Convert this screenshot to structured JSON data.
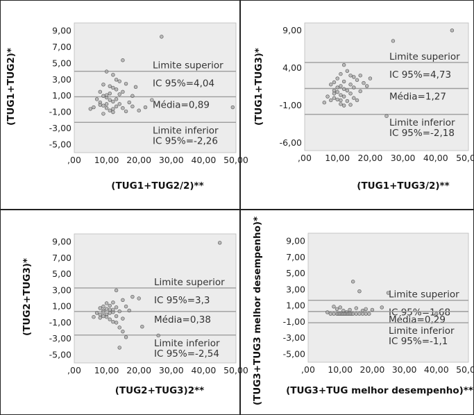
{
  "chart_data": [
    {
      "type": "scatter",
      "xlabel": "(TUG1+TUG2/2)**",
      "ylabel": "(TUG1+TUG2)*",
      "xlim": [
        0,
        50
      ],
      "ylim": [
        -6,
        10
      ],
      "x_ticks": [
        ",00",
        "10,00",
        "20,00",
        "30,00",
        "40,00",
        "50,00"
      ],
      "y_ticks": [
        "9,00",
        "7,00",
        "5,00",
        "3,00",
        "1,00",
        "-1,00",
        "-3,00",
        "-5,00"
      ],
      "y_tick_values": [
        9,
        7,
        5,
        3,
        1,
        -1,
        -3,
        -5
      ],
      "lines": [
        {
          "y": 4.04,
          "label_lines": [
            "Limite superior",
            "IC 95%=4,04"
          ]
        },
        {
          "y": 0.89,
          "label_lines": [
            "Média=0,89"
          ]
        },
        {
          "y": -2.26,
          "label_lines": [
            "Limite inferior",
            "IC 95%=-2,26"
          ]
        }
      ],
      "points": [
        [
          27,
          8.3
        ],
        [
          15,
          5.4
        ],
        [
          10,
          4.0
        ],
        [
          12,
          3.6
        ],
        [
          13,
          3.0
        ],
        [
          14,
          2.8
        ],
        [
          9,
          2.4
        ],
        [
          11,
          2.2
        ],
        [
          12,
          2.0
        ],
        [
          13,
          1.8
        ],
        [
          15,
          1.5
        ],
        [
          16,
          2.5
        ],
        [
          19,
          2.1
        ],
        [
          18,
          1.0
        ],
        [
          8,
          1.5
        ],
        [
          9,
          1.0
        ],
        [
          10,
          0.8
        ],
        [
          11,
          0.5
        ],
        [
          12,
          0.3
        ],
        [
          8,
          0.2
        ],
        [
          9,
          -0.2
        ],
        [
          10,
          -0.5
        ],
        [
          11,
          -0.8
        ],
        [
          12,
          -1.0
        ],
        [
          13,
          -0.3
        ],
        [
          14,
          0.0
        ],
        [
          15,
          -0.5
        ],
        [
          16,
          -0.9
        ],
        [
          18,
          -0.3
        ],
        [
          20,
          -0.8
        ],
        [
          22,
          -0.4
        ],
        [
          24,
          0.5
        ],
        [
          7,
          0.6
        ],
        [
          6,
          -0.4
        ],
        [
          5,
          -0.6
        ],
        [
          9,
          -1.2
        ],
        [
          10,
          0.0
        ],
        [
          11,
          1.3
        ],
        [
          13,
          0.6
        ],
        [
          14,
          1.2
        ],
        [
          17,
          0.2
        ],
        [
          49,
          -0.4
        ],
        [
          10,
          1.1
        ],
        [
          12,
          -0.6
        ],
        [
          8,
          -0.1
        ]
      ]
    },
    {
      "type": "scatter",
      "xlabel": "(TUG1+TUG3/2)**",
      "ylabel": "(TUG1+TUG3)*",
      "xlim": [
        0,
        50
      ],
      "ylim": [
        -7,
        10
      ],
      "x_ticks": [
        ",00",
        "10,00",
        "20,00",
        "30,00",
        "40,00",
        "50,00"
      ],
      "y_ticks": [
        "9,00",
        "4,00",
        "-1,00",
        "-6,00"
      ],
      "y_tick_values": [
        9,
        4,
        -1,
        -6
      ],
      "lines": [
        {
          "y": 4.73,
          "label_lines": [
            "Limite superior",
            "IC 95%=4,73"
          ]
        },
        {
          "y": 1.27,
          "label_lines": [
            "Média=1,27"
          ]
        },
        {
          "y": -2.18,
          "label_lines": [
            "Limite inferior",
            "IC 95%=-2,18"
          ]
        }
      ],
      "points": [
        [
          45,
          9.0
        ],
        [
          27,
          7.6
        ],
        [
          12,
          4.4
        ],
        [
          13,
          3.6
        ],
        [
          11,
          3.2
        ],
        [
          14,
          3.0
        ],
        [
          15,
          2.8
        ],
        [
          16,
          2.4
        ],
        [
          18,
          2.0
        ],
        [
          17,
          3.0
        ],
        [
          10,
          2.6
        ],
        [
          9,
          2.1
        ],
        [
          8,
          1.8
        ],
        [
          11,
          1.6
        ],
        [
          12,
          1.2
        ],
        [
          13,
          1.0
        ],
        [
          10,
          0.8
        ],
        [
          9,
          0.6
        ],
        [
          11,
          0.4
        ],
        [
          12,
          0.2
        ],
        [
          14,
          0.6
        ],
        [
          15,
          0.0
        ],
        [
          16,
          -0.3
        ],
        [
          13,
          -0.4
        ],
        [
          10,
          -0.2
        ],
        [
          9,
          0.0
        ],
        [
          8,
          -0.3
        ],
        [
          7,
          0.2
        ],
        [
          6,
          -0.6
        ],
        [
          11,
          -0.8
        ],
        [
          12,
          -1.0
        ],
        [
          14,
          -0.9
        ],
        [
          15,
          1.4
        ],
        [
          17,
          0.9
        ],
        [
          19,
          1.6
        ],
        [
          25,
          -2.4
        ],
        [
          10,
          1.4
        ],
        [
          12,
          2.2
        ],
        [
          14,
          1.8
        ],
        [
          9,
          1.0
        ],
        [
          20,
          2.6
        ],
        [
          11,
          -0.3
        ]
      ]
    },
    {
      "type": "scatter",
      "xlabel": "(TUG2+TUG3)2**",
      "ylabel": "(TUG2+TUG3)*",
      "xlim": [
        0,
        50
      ],
      "ylim": [
        -6,
        10
      ],
      "x_ticks": [
        ",00",
        "10,00",
        "20,00",
        "30,00",
        "40,00",
        "50,00"
      ],
      "y_ticks": [
        "9,00",
        "7,00",
        "5,00",
        "3,00",
        "1,00",
        "-1,00",
        "-3,00",
        "-5,00"
      ],
      "y_tick_values": [
        9,
        7,
        5,
        3,
        1,
        -1,
        -3,
        -5
      ],
      "lines": [
        {
          "y": 3.3,
          "label_lines": [
            "Limite superior",
            "IC 95%=3,3"
          ]
        },
        {
          "y": 0.38,
          "label_lines": [
            "Média=0,38"
          ]
        },
        {
          "y": -2.54,
          "label_lines": [
            "Limite inferior",
            "IC 95%=-2,54"
          ]
        }
      ],
      "points": [
        [
          45,
          8.9
        ],
        [
          13,
          3.0
        ],
        [
          18,
          2.2
        ],
        [
          20,
          2.0
        ],
        [
          15,
          1.8
        ],
        [
          16,
          1.0
        ],
        [
          17,
          0.5
        ],
        [
          10,
          1.4
        ],
        [
          9,
          1.0
        ],
        [
          8,
          0.8
        ],
        [
          11,
          0.6
        ],
        [
          12,
          0.3
        ],
        [
          10,
          0.0
        ],
        [
          9,
          -0.2
        ],
        [
          8,
          -0.4
        ],
        [
          7,
          0.2
        ],
        [
          6,
          -0.3
        ],
        [
          11,
          -0.6
        ],
        [
          12,
          -0.9
        ],
        [
          13,
          -1.0
        ],
        [
          14,
          -1.6
        ],
        [
          15,
          -2.1
        ],
        [
          16,
          -2.8
        ],
        [
          14,
          -4.1
        ],
        [
          21,
          -1.5
        ],
        [
          26,
          -2.6
        ],
        [
          9,
          0.5
        ],
        [
          10,
          0.7
        ],
        [
          11,
          0.2
        ],
        [
          12,
          0.6
        ],
        [
          13,
          0.9
        ],
        [
          10,
          -0.3
        ],
        [
          9,
          0.3
        ],
        [
          8,
          0.0
        ],
        [
          14,
          0.4
        ],
        [
          15,
          -0.5
        ],
        [
          11,
          1.1
        ],
        [
          12,
          1.5
        ],
        [
          13,
          -0.2
        ]
      ]
    },
    {
      "type": "scatter",
      "xlabel": "(TUG3+TUG melhor desempenho)**",
      "ylabel": "(TUG3+TUG3 melhor desempenho)*",
      "xlim": [
        0,
        50
      ],
      "ylim": [
        -6,
        10
      ],
      "x_ticks": [
        ",00",
        "10,00",
        "20,00",
        "30,00",
        "40,00",
        "50,00"
      ],
      "y_ticks": [
        "9,00",
        "7,00",
        "5,00",
        "3,00",
        "1,00",
        "-1,00",
        "-3,00",
        "-5,00"
      ],
      "y_tick_values": [
        9,
        7,
        5,
        3,
        1,
        -1,
        -3,
        -5
      ],
      "lines": [
        {
          "y": 1.68,
          "label_lines": [
            "Limite superior",
            "IC 95%=1,68"
          ]
        },
        {
          "y": 0.29,
          "label_lines": [
            "Média=0,29"
          ]
        },
        {
          "y": -1.1,
          "label_lines": [
            "Limite inferior",
            "IC 95%=-1,1"
          ]
        }
      ],
      "points": [
        [
          14,
          4.0
        ],
        [
          16,
          2.8
        ],
        [
          25,
          2.6
        ],
        [
          23,
          0.8
        ],
        [
          20,
          0.5
        ],
        [
          40,
          0.0
        ],
        [
          8,
          0.9
        ],
        [
          9,
          0.6
        ],
        [
          10,
          0.8
        ],
        [
          11,
          0.4
        ],
        [
          12,
          0.2
        ],
        [
          13,
          0.5
        ],
        [
          15,
          0.7
        ],
        [
          17,
          0.4
        ],
        [
          7,
          0
        ],
        [
          8,
          0
        ],
        [
          9,
          0
        ],
        [
          9.5,
          0
        ],
        [
          10,
          0
        ],
        [
          10.5,
          0
        ],
        [
          11,
          0
        ],
        [
          11.5,
          0
        ],
        [
          12,
          0
        ],
        [
          12.5,
          0
        ],
        [
          13,
          0
        ],
        [
          13.5,
          0
        ],
        [
          14,
          0
        ],
        [
          15,
          0
        ],
        [
          16,
          0
        ],
        [
          17,
          0
        ],
        [
          18,
          0
        ],
        [
          19,
          0
        ],
        [
          6,
          0.2
        ],
        [
          18,
          0.6
        ]
      ]
    }
  ]
}
